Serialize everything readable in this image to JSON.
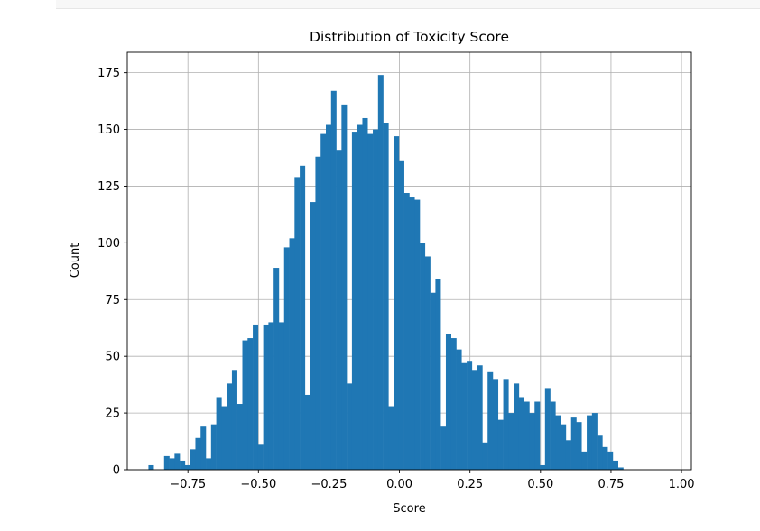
{
  "chart_data": {
    "type": "bar",
    "title": "Distribution of Toxicity Score",
    "xlabel": "Score",
    "ylabel": "Count",
    "xlim": [
      -0.965,
      1.035
    ],
    "ylim": [
      0,
      184
    ],
    "grid": true,
    "bar_color": "#1f77b4",
    "x_ticks": [
      -0.75,
      -0.5,
      -0.25,
      0.0,
      0.25,
      0.5,
      0.75,
      1.0
    ],
    "x_tick_labels": [
      "−0.75",
      "−0.50",
      "−0.25",
      "0.00",
      "0.25",
      "0.50",
      "0.75",
      "1.00"
    ],
    "y_ticks": [
      0,
      25,
      50,
      75,
      100,
      125,
      150,
      175
    ],
    "y_tick_labels": [
      "0",
      "25",
      "50",
      "75",
      "100",
      "125",
      "150",
      "175"
    ],
    "bin_start": -0.89,
    "bin_width": 0.0185,
    "counts": [
      2,
      0,
      0,
      6,
      5,
      7,
      4,
      2,
      9,
      14,
      19,
      5,
      20,
      32,
      28,
      38,
      44,
      29,
      57,
      58,
      64,
      11,
      64,
      65,
      89,
      65,
      98,
      102,
      129,
      134,
      33,
      118,
      138,
      148,
      152,
      167,
      141,
      161,
      38,
      149,
      152,
      155,
      148,
      150,
      174,
      153,
      28,
      147,
      136,
      122,
      120,
      119,
      100,
      94,
      78,
      84,
      19,
      60,
      58,
      53,
      47,
      48,
      44,
      46,
      12,
      43,
      40,
      22,
      40,
      25,
      38,
      32,
      30,
      25,
      30,
      2,
      36,
      30,
      24,
      20,
      13,
      23,
      21,
      8,
      24,
      25,
      15,
      10,
      8,
      4,
      1
    ]
  }
}
